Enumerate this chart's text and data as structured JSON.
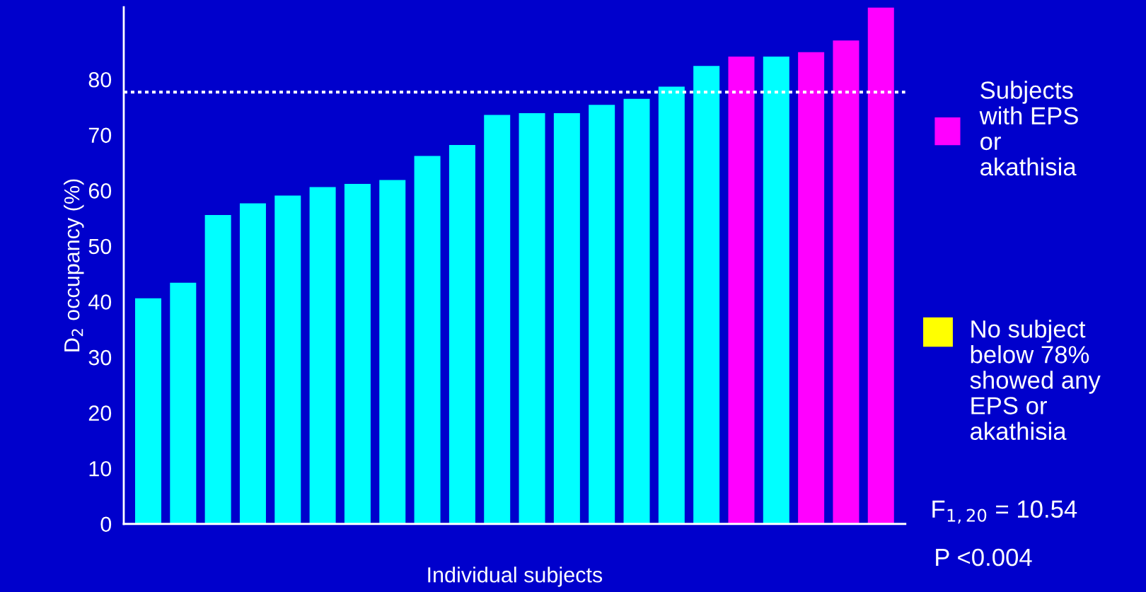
{
  "chart_data": {
    "type": "bar",
    "ylabel": "D$_{2}$ occupancy (%)",
    "xlabel": "Individual subjects",
    "categories": [
      null,
      null,
      null,
      null,
      null,
      null,
      null,
      null,
      null,
      null,
      null,
      null,
      null,
      null,
      null,
      null,
      null,
      null,
      null,
      null,
      null,
      null
    ],
    "series": [
      {
        "color": "#00ffff",
        "values": [
          40.6,
          43.4,
          55.6,
          57.7,
          59.1,
          60.6,
          61.2,
          61.9,
          66.2,
          68.2,
          73.6,
          73.9,
          73.9,
          75.4,
          76.5,
          78.7,
          82.4,
          null,
          84.1,
          null,
          null,
          null
        ]
      },
      {
        "name": "Subjects\nwith EPS\nor\nakathisia",
        "color": "#ff00ff",
        "values": [
          null,
          null,
          null,
          null,
          null,
          null,
          null,
          null,
          null,
          null,
          null,
          null,
          null,
          null,
          null,
          null,
          null,
          84.1,
          null,
          84.9,
          87.0,
          92.9
        ]
      }
    ],
    "ylim": [
      0,
      93
    ],
    "yticks": [
      0,
      10,
      20,
      30,
      40,
      50,
      60,
      70,
      80
    ],
    "ref_lines": [
      {
        "axis": "y",
        "value": 77.7,
        "color": "#ffffff",
        "line_style": "dotted"
      }
    ],
    "annotations": [
      "No subject\nbelow 78%\nshowed any\nEPS or\nakathisia",
      "F$_{1,20}$ = 10.54",
      "P <0.004"
    ],
    "legend": "right",
    "grid": false
  }
}
